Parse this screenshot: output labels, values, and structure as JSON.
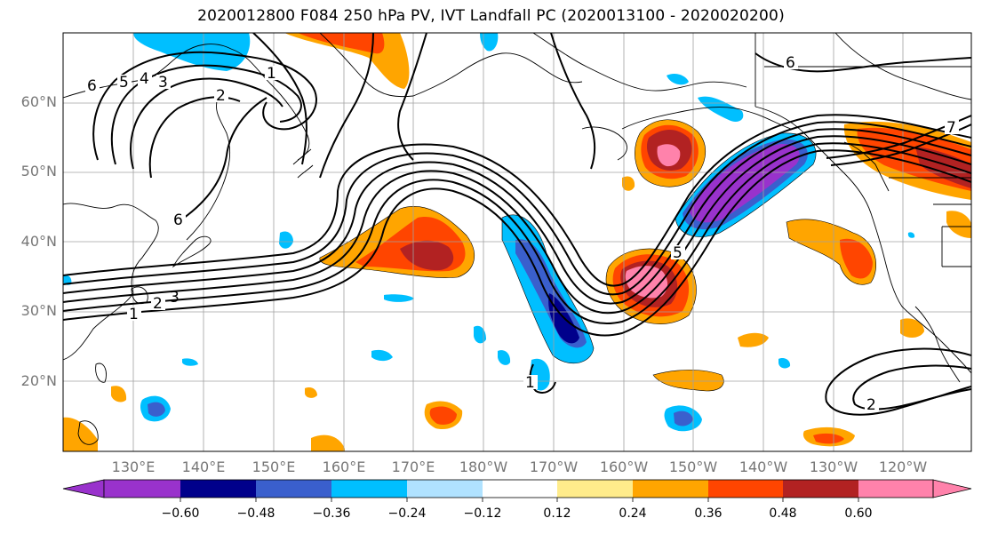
{
  "title": "2020012800 F084 250 hPa PV, IVT Landfall PC (2020013100 - 2020020200)",
  "lat_labels": [
    "60°N",
    "50°N",
    "40°N",
    "30°N",
    "20°N"
  ],
  "lon_labels": [
    "130°E",
    "140°E",
    "150°E",
    "160°E",
    "170°E",
    "180°W",
    "170°W",
    "160°W",
    "150°W",
    "140°W",
    "130°W",
    "120°W"
  ],
  "colorbar": {
    "tick_labels": [
      "−0.60",
      "−0.48",
      "−0.36",
      "−0.24",
      "−0.12",
      "0.12",
      "0.24",
      "0.36",
      "0.48",
      "0.60"
    ],
    "colors": [
      "#9932cc",
      "#00008b",
      "#3a5fcd",
      "#00bfff",
      "#b0e2ff",
      "#ffffff",
      "#ffec8b",
      "#ffa500",
      "#ff4500",
      "#b22222",
      "#ff82ab"
    ]
  },
  "contour_labels": [
    "6",
    "5",
    "4",
    "3",
    "2",
    "1",
    "2",
    "6",
    "1",
    "2",
    "3",
    "5",
    "6",
    "2",
    "7",
    "1"
  ],
  "colors": {
    "contour": "#000000",
    "coast": "#000000",
    "grid": "#a0a0a0",
    "tick_label": "#777777"
  }
}
